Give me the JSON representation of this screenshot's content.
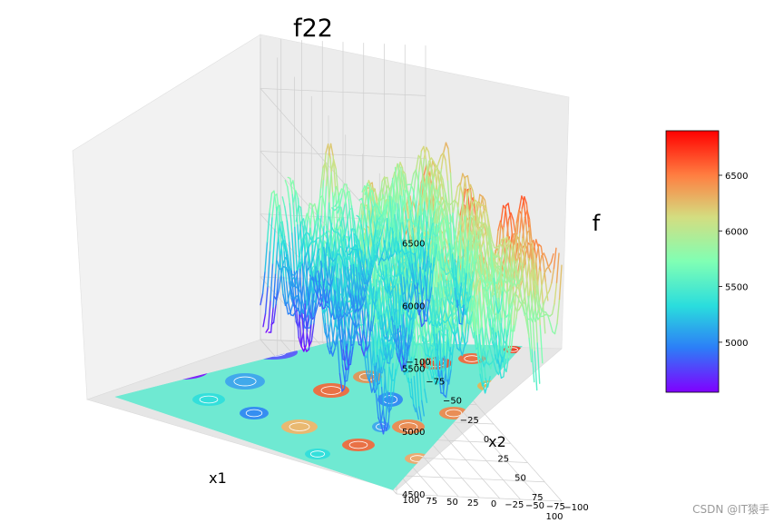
{
  "chart_data": {
    "type": "surface3d",
    "title": "f22",
    "xlabel": "x1",
    "ylabel": "x2",
    "zlabel": "f",
    "x_ticks": [
      -100,
      -75,
      -50,
      -25,
      0,
      25,
      50,
      75,
      100
    ],
    "y_ticks": [
      -100,
      -75,
      -50,
      -25,
      0,
      25,
      50,
      75,
      100
    ],
    "z_ticks": [
      4500,
      5000,
      5500,
      6000,
      6500
    ],
    "colorbar_ticks": [
      5000,
      5500,
      6000,
      6500
    ],
    "xlim": [
      -100,
      100
    ],
    "ylim": [
      -100,
      100
    ],
    "zlim": [
      4500,
      6900
    ],
    "color_range": [
      4550,
      6900
    ],
    "colormap": "rainbow",
    "colormap_stops": [
      "#8000ff",
      "#2c7ef7",
      "#2adddd",
      "#80ffb4",
      "#d4dd80",
      "#ff7e41",
      "#ff0000"
    ],
    "contour_projection": "floor",
    "grid": true,
    "colorbar_position": "right"
  },
  "watermark": "CSDN @IT猿手"
}
